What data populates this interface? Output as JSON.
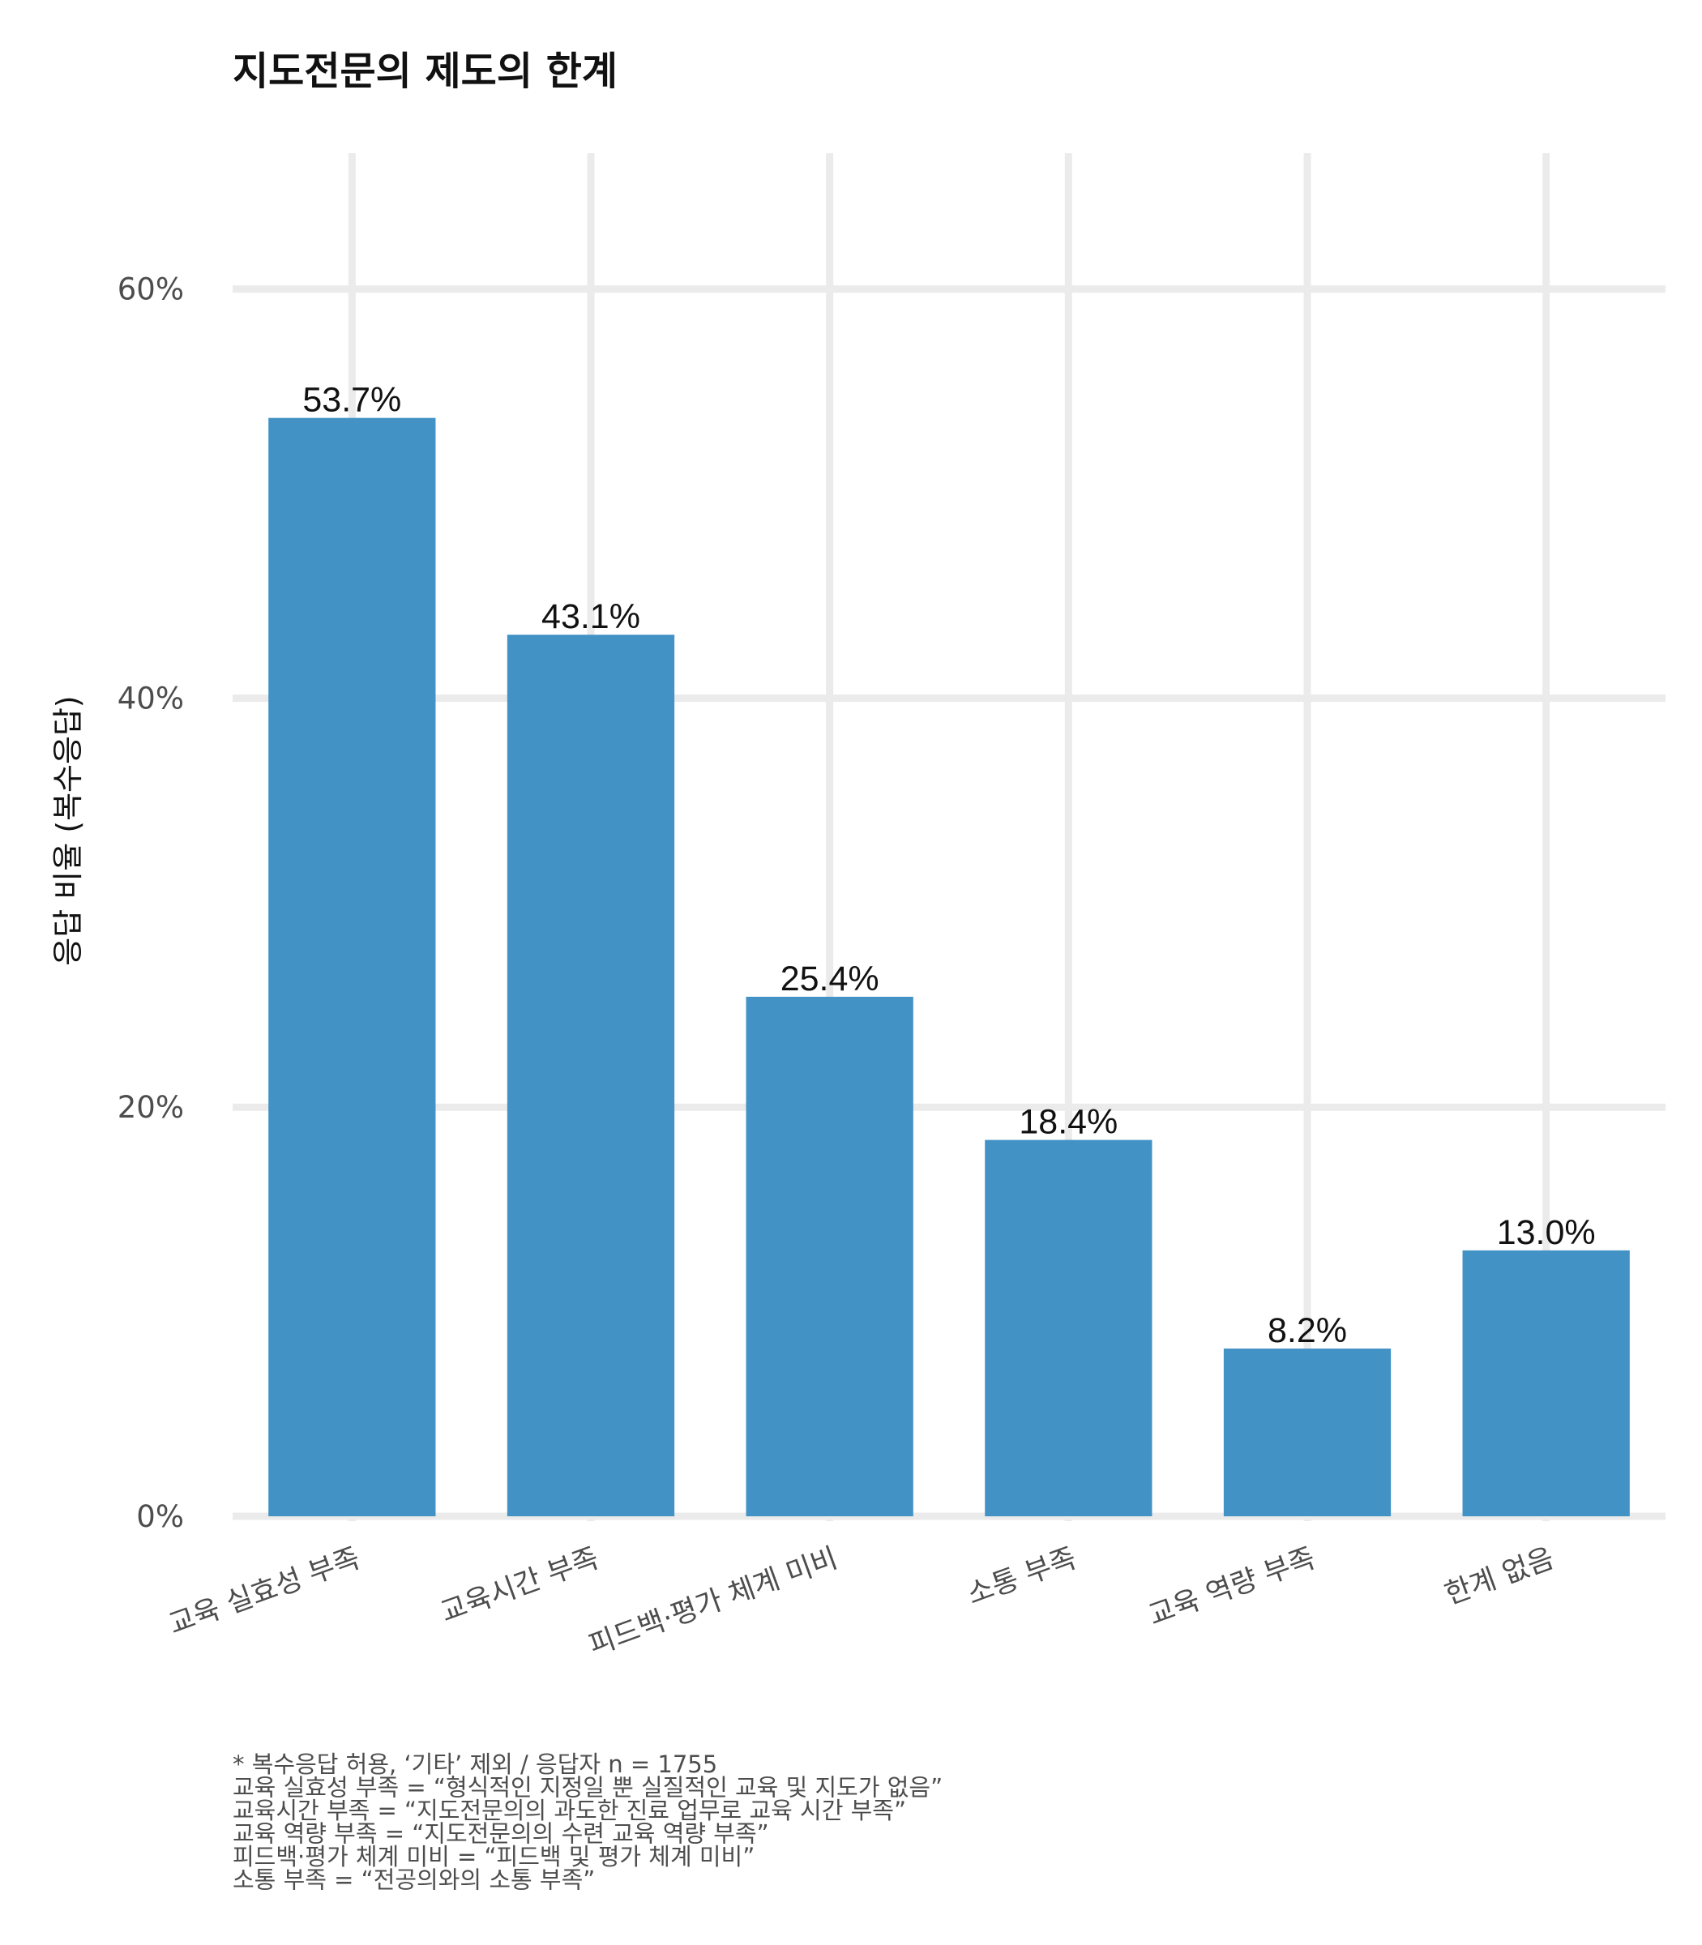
{
  "chart_data": {
    "type": "bar",
    "title": "지도전문의 제도의 한계",
    "xlabel": "",
    "ylabel": "응답 비율 (복수응답)",
    "categories": [
      "교육 실효성 부족",
      "교육시간 부족",
      "피드백·평가 체계 미비",
      "소통 부족",
      "교육 역량 부족",
      "한계 없음"
    ],
    "values": [
      53.7,
      43.1,
      25.4,
      18.4,
      8.2,
      13.0
    ],
    "data_labels": [
      "53.7%",
      "43.1%",
      "25.4%",
      "18.4%",
      "8.2%",
      "13.0%"
    ],
    "y_ticks": [
      0,
      20,
      40,
      60
    ],
    "y_tick_labels": [
      "0%",
      "20%",
      "40%",
      "60%"
    ],
    "ylim": [
      0,
      67
    ],
    "grid": true,
    "bar_color": "#4292c6",
    "grid_color": "#ebebeb",
    "notes": [
      "* 복수응답 허용, ‘기타’ 제외 / 응답자 n = 1755",
      "교육 실효성 부족 = “형식적인 지정일 뿐 실질적인 교육 및 지도가 없음”",
      "교육시간 부족 = “지도전문의의 과도한 진료 업무로 교육 시간 부족”",
      "교육 역량 부족 = “지도전문의의 수련 교육 역량 부족”",
      "피드백·평가 체계 미비 = “피드백 및 평가 체계 미비”",
      "소통 부족 = “전공의와의 소통 부족”"
    ]
  }
}
